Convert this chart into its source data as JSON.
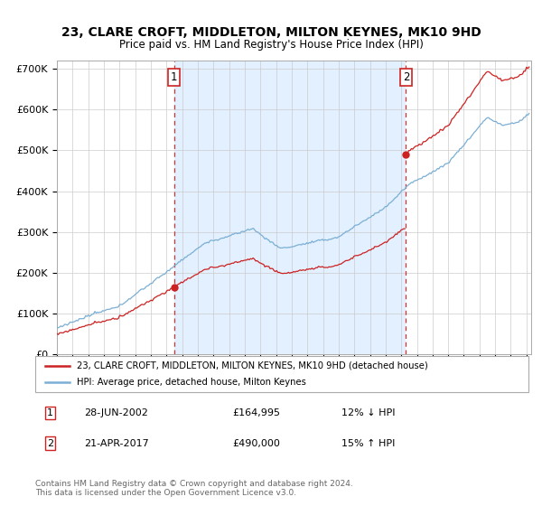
{
  "title": "23, CLARE CROFT, MIDDLETON, MILTON KEYNES, MK10 9HD",
  "subtitle": "Price paid vs. HM Land Registry's House Price Index (HPI)",
  "ylabel_ticks": [
    "£0",
    "£100K",
    "£200K",
    "£300K",
    "£400K",
    "£500K",
    "£600K",
    "£700K"
  ],
  "ytick_values": [
    0,
    100000,
    200000,
    300000,
    400000,
    500000,
    600000,
    700000
  ],
  "ylim": [
    0,
    720000
  ],
  "xlim_start": 1995.0,
  "xlim_end": 2025.3,
  "hpi_color": "#7bafd4",
  "price_color": "#cc2222",
  "sale1_date": 2002.49,
  "sale1_price": 164995,
  "sale2_date": 2017.3,
  "sale2_price": 490000,
  "vline_color": "#cc3333",
  "marker_color": "#cc2222",
  "fill_color": "#ddeeff",
  "legend1_label": "23, CLARE CROFT, MIDDLETON, MILTON KEYNES, MK10 9HD (detached house)",
  "legend2_label": "HPI: Average price, detached house, Milton Keynes",
  "annotation1_label": "1",
  "annotation2_label": "2",
  "footer1": "Contains HM Land Registry data © Crown copyright and database right 2024.",
  "footer2": "This data is licensed under the Open Government Licence v3.0.",
  "table_row1": [
    "1",
    "28-JUN-2002",
    "£164,995",
    "12% ↓ HPI"
  ],
  "table_row2": [
    "2",
    "21-APR-2017",
    "£490,000",
    "15% ↑ HPI"
  ],
  "background_color": "#ffffff",
  "grid_color": "#cccccc"
}
